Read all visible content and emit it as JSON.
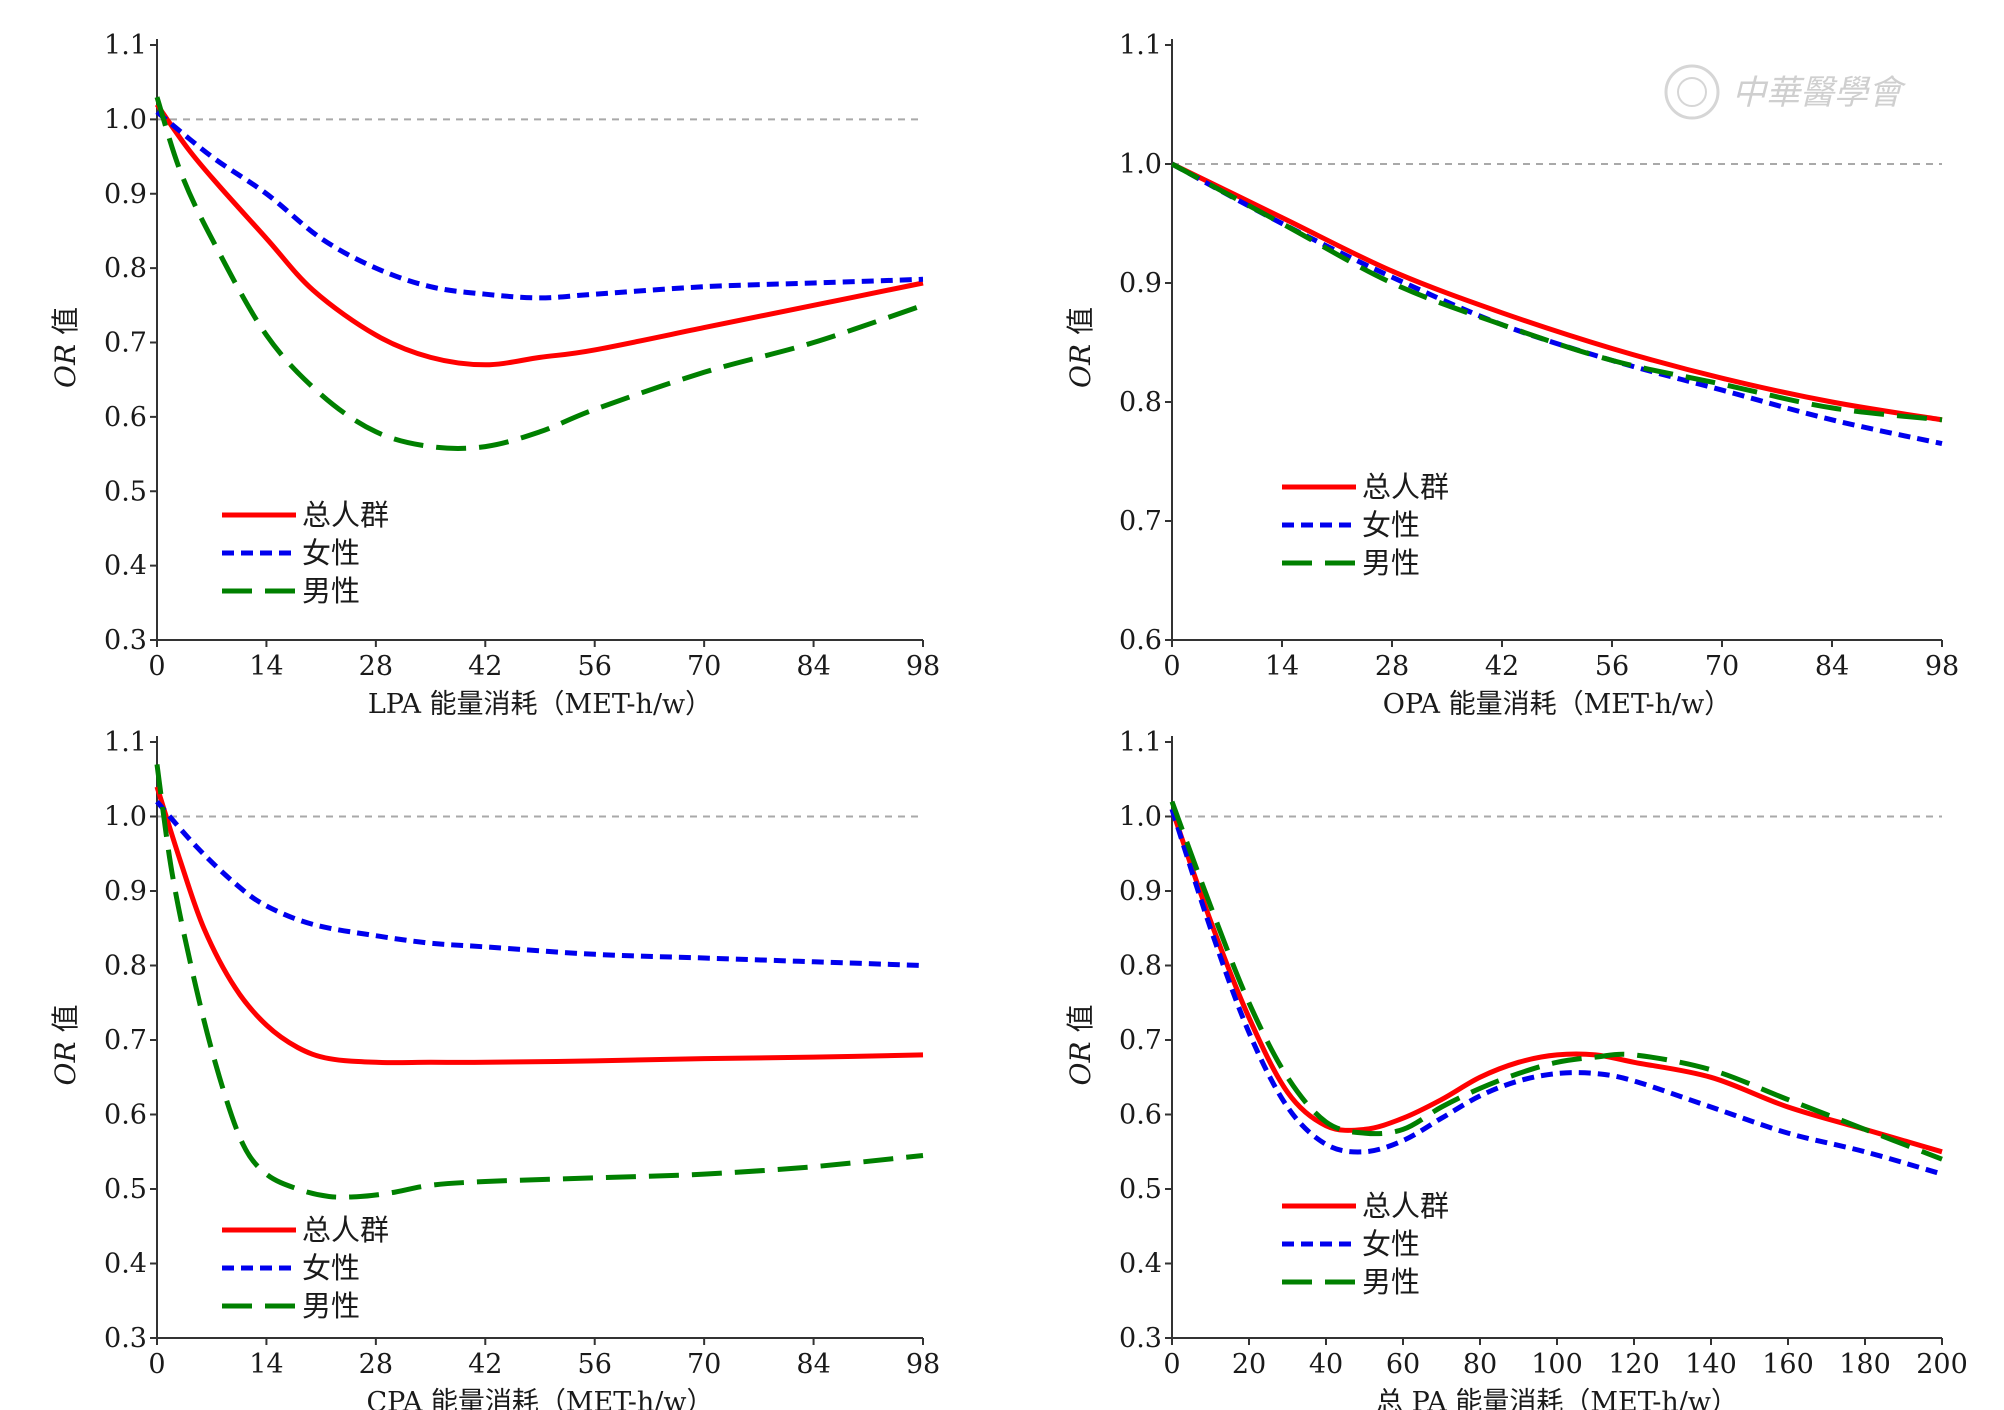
{
  "watermark": {
    "text": "中華醫學會"
  },
  "chart_data": [
    {
      "type": "line",
      "xlabel": "LPA 能量消耗（MET-h/w）",
      "ylabel_italic": "OR",
      "ylabel_rest": " 值",
      "xlim": [
        0,
        98
      ],
      "ylim": [
        0.3,
        1.1
      ],
      "xticks": [
        0,
        14,
        28,
        42,
        56,
        70,
        84,
        98
      ],
      "yticks": [
        0.3,
        0.4,
        0.5,
        0.6,
        0.7,
        0.8,
        0.9,
        1.0,
        1.1
      ],
      "ytick_labels": [
        "0.3",
        "0.4",
        "0.5",
        "0.6",
        "0.7",
        "0.8",
        "0.9",
        "1.0",
        "1.1"
      ],
      "reference_y": 1.0,
      "legend_position": "bottom-left",
      "series": [
        {
          "name": "总人群",
          "color": "#ff0000",
          "dash": "solid",
          "x": [
            0,
            4,
            8,
            14,
            20,
            28,
            35,
            42,
            49,
            56,
            70,
            84,
            98
          ],
          "y": [
            1.02,
            0.96,
            0.91,
            0.84,
            0.77,
            0.71,
            0.68,
            0.67,
            0.68,
            0.69,
            0.72,
            0.75,
            0.78
          ]
        },
        {
          "name": "女性",
          "color": "#0000ee",
          "dash": "dotted",
          "x": [
            0,
            7,
            14,
            21,
            28,
            35,
            42,
            49,
            56,
            70,
            84,
            98
          ],
          "y": [
            1.01,
            0.95,
            0.9,
            0.84,
            0.8,
            0.775,
            0.765,
            0.76,
            0.765,
            0.775,
            0.78,
            0.785
          ]
        },
        {
          "name": "男性",
          "color": "#008000",
          "dash": "dashed",
          "x": [
            0,
            3,
            7,
            14,
            21,
            28,
            35,
            42,
            49,
            56,
            70,
            84,
            98
          ],
          "y": [
            1.03,
            0.93,
            0.84,
            0.71,
            0.63,
            0.58,
            0.56,
            0.56,
            0.58,
            0.61,
            0.66,
            0.7,
            0.75
          ]
        }
      ]
    },
    {
      "type": "line",
      "xlabel": "OPA 能量消耗（MET-h/w）",
      "ylabel_italic": "OR",
      "ylabel_rest": " 值",
      "xlim": [
        0,
        98
      ],
      "ylim": [
        0.6,
        1.1
      ],
      "xticks": [
        0,
        14,
        28,
        42,
        56,
        70,
        84,
        98
      ],
      "yticks": [
        0.6,
        0.7,
        0.8,
        0.9,
        1.0,
        1.1
      ],
      "ytick_labels": [
        "0.6",
        "0.7",
        "0.8",
        "0.9",
        "1.0",
        "1.1"
      ],
      "reference_y": 1.0,
      "legend_position": "bottom-left",
      "series": [
        {
          "name": "总人群",
          "color": "#ff0000",
          "dash": "solid",
          "x": [
            0,
            14,
            28,
            42,
            56,
            70,
            84,
            98
          ],
          "y": [
            1.0,
            0.955,
            0.91,
            0.875,
            0.845,
            0.82,
            0.8,
            0.785
          ]
        },
        {
          "name": "女性",
          "color": "#0000ee",
          "dash": "dotted",
          "x": [
            0,
            14,
            28,
            42,
            56,
            70,
            84,
            98
          ],
          "y": [
            1.0,
            0.95,
            0.905,
            0.865,
            0.835,
            0.81,
            0.785,
            0.765
          ]
        },
        {
          "name": "男性",
          "color": "#008000",
          "dash": "dashed",
          "x": [
            0,
            14,
            28,
            42,
            56,
            70,
            84,
            98
          ],
          "y": [
            1.0,
            0.95,
            0.9,
            0.865,
            0.835,
            0.815,
            0.795,
            0.785
          ]
        }
      ]
    },
    {
      "type": "line",
      "xlabel": "CPA 能量消耗（MET-h/w）",
      "ylabel_italic": "OR",
      "ylabel_rest": " 值",
      "xlim": [
        0,
        98
      ],
      "ylim": [
        0.3,
        1.1
      ],
      "xticks": [
        0,
        14,
        28,
        42,
        56,
        70,
        84,
        98
      ],
      "yticks": [
        0.3,
        0.4,
        0.5,
        0.6,
        0.7,
        0.8,
        0.9,
        1.0,
        1.1
      ],
      "ytick_labels": [
        "0.3",
        "0.4",
        "0.5",
        "0.6",
        "0.7",
        "0.8",
        "0.9",
        "1.0",
        "1.1"
      ],
      "reference_y": 1.0,
      "legend_position": "bottom-left",
      "series": [
        {
          "name": "总人群",
          "color": "#ff0000",
          "dash": "solid",
          "x": [
            0,
            3,
            6,
            10,
            14,
            18,
            22,
            28,
            35,
            42,
            56,
            70,
            84,
            98
          ],
          "y": [
            1.04,
            0.94,
            0.85,
            0.77,
            0.72,
            0.69,
            0.675,
            0.67,
            0.67,
            0.67,
            0.672,
            0.675,
            0.677,
            0.68
          ]
        },
        {
          "name": "女性",
          "color": "#0000ee",
          "dash": "dotted",
          "x": [
            0,
            5,
            10,
            14,
            20,
            28,
            35,
            42,
            56,
            70,
            84,
            98
          ],
          "y": [
            1.02,
            0.96,
            0.91,
            0.88,
            0.855,
            0.84,
            0.83,
            0.825,
            0.815,
            0.81,
            0.805,
            0.8
          ]
        },
        {
          "name": "男性",
          "color": "#008000",
          "dash": "dashed",
          "x": [
            0,
            2,
            5,
            8,
            11,
            14,
            18,
            22,
            26,
            30,
            35,
            42,
            56,
            70,
            84,
            98
          ],
          "y": [
            1.07,
            0.92,
            0.77,
            0.65,
            0.56,
            0.52,
            0.5,
            0.49,
            0.49,
            0.495,
            0.505,
            0.51,
            0.515,
            0.52,
            0.53,
            0.545
          ]
        }
      ]
    },
    {
      "type": "line",
      "xlabel": "总 PA 能量消耗（MET-h/w）",
      "ylabel_italic": "OR",
      "ylabel_rest": " 值",
      "xlim": [
        0,
        200
      ],
      "ylim": [
        0.3,
        1.1
      ],
      "xticks": [
        0,
        20,
        40,
        60,
        80,
        100,
        120,
        140,
        160,
        180,
        200
      ],
      "yticks": [
        0.3,
        0.4,
        0.5,
        0.6,
        0.7,
        0.8,
        0.9,
        1.0,
        1.1
      ],
      "ytick_labels": [
        "0.3",
        "0.4",
        "0.5",
        "0.6",
        "0.7",
        "0.8",
        "0.9",
        "1.0",
        "1.1"
      ],
      "reference_y": 1.0,
      "legend_position": "bottom-left",
      "series": [
        {
          "name": "总人群",
          "color": "#ff0000",
          "dash": "solid",
          "x": [
            0,
            10,
            20,
            30,
            40,
            50,
            60,
            70,
            80,
            90,
            100,
            110,
            120,
            140,
            160,
            180,
            200
          ],
          "y": [
            1.01,
            0.86,
            0.73,
            0.63,
            0.585,
            0.58,
            0.595,
            0.62,
            0.65,
            0.67,
            0.68,
            0.68,
            0.67,
            0.65,
            0.61,
            0.58,
            0.55
          ]
        },
        {
          "name": "女性",
          "color": "#0000ee",
          "dash": "dotted",
          "x": [
            0,
            10,
            20,
            30,
            40,
            50,
            60,
            70,
            80,
            90,
            100,
            110,
            120,
            140,
            160,
            180,
            200
          ],
          "y": [
            1.01,
            0.85,
            0.71,
            0.61,
            0.56,
            0.55,
            0.565,
            0.595,
            0.625,
            0.645,
            0.655,
            0.655,
            0.645,
            0.61,
            0.575,
            0.55,
            0.52
          ]
        },
        {
          "name": "男性",
          "color": "#008000",
          "dash": "dashed",
          "x": [
            0,
            10,
            20,
            30,
            40,
            50,
            60,
            70,
            80,
            90,
            100,
            110,
            120,
            140,
            160,
            180,
            200
          ],
          "y": [
            1.02,
            0.88,
            0.75,
            0.65,
            0.59,
            0.575,
            0.58,
            0.61,
            0.635,
            0.655,
            0.67,
            0.677,
            0.68,
            0.66,
            0.62,
            0.58,
            0.54
          ]
        }
      ]
    }
  ]
}
